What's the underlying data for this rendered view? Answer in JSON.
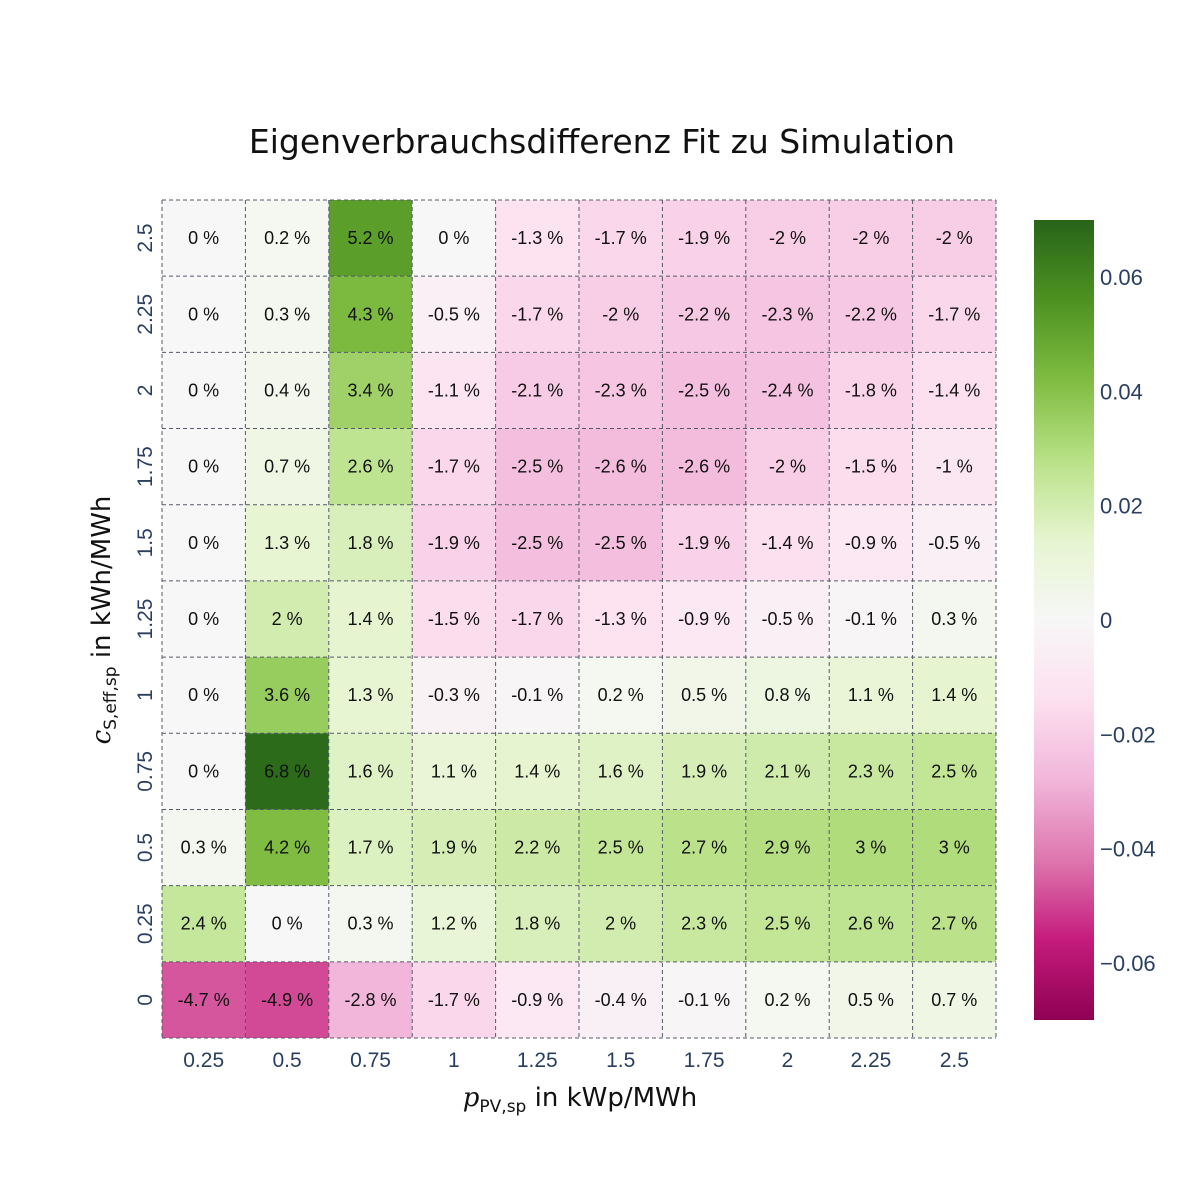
{
  "chart_data": {
    "type": "heatmap",
    "title": "Eigenverbrauchsdifferenz Fit zu Simulation",
    "xlabel": {
      "symbol": "p",
      "sub": "PV,sp",
      "unit": " in kWp/MWh"
    },
    "ylabel": {
      "symbol": "c",
      "sub": "S,eff,sp",
      "unit": " in kWh/MWh"
    },
    "x": [
      "0.25",
      "0.5",
      "0.75",
      "1",
      "1.25",
      "1.5",
      "1.75",
      "2",
      "2.25",
      "2.5"
    ],
    "y": [
      "0",
      "0.25",
      "0.5",
      "0.75",
      "1",
      "1.25",
      "1.5",
      "1.75",
      "2",
      "2.25",
      "2.5"
    ],
    "z": [
      [
        -0.047,
        -0.049,
        -0.028,
        -0.017,
        -0.009,
        -0.004,
        -0.001,
        0.002,
        0.005,
        0.007
      ],
      [
        0.024,
        0.0,
        0.003,
        0.012,
        0.018,
        0.02,
        0.023,
        0.025,
        0.026,
        0.027
      ],
      [
        0.003,
        0.042,
        0.017,
        0.019,
        0.022,
        0.025,
        0.027,
        0.029,
        0.03,
        0.03
      ],
      [
        0.0,
        0.068,
        0.016,
        0.011,
        0.014,
        0.016,
        0.019,
        0.021,
        0.023,
        0.025
      ],
      [
        0.0,
        0.036,
        0.013,
        -0.003,
        -0.001,
        0.002,
        0.005,
        0.008,
        0.011,
        0.014
      ],
      [
        0.0,
        0.02,
        0.014,
        -0.015,
        -0.017,
        -0.013,
        -0.009,
        -0.005,
        -0.001,
        0.003
      ],
      [
        0.0,
        0.013,
        0.018,
        -0.019,
        -0.025,
        -0.025,
        -0.019,
        -0.014,
        -0.009,
        -0.005
      ],
      [
        0.0,
        0.007,
        0.026,
        -0.017,
        -0.025,
        -0.026,
        -0.026,
        -0.02,
        -0.015,
        -0.01
      ],
      [
        0.0,
        0.004,
        0.034,
        -0.011,
        -0.021,
        -0.023,
        -0.025,
        -0.024,
        -0.018,
        -0.014
      ],
      [
        0.0,
        0.003,
        0.043,
        -0.005,
        -0.017,
        -0.02,
        -0.022,
        -0.023,
        -0.022,
        -0.017
      ],
      [
        0.0,
        0.002,
        0.052,
        0.0,
        -0.013,
        -0.017,
        -0.019,
        -0.02,
        -0.02,
        -0.02
      ]
    ],
    "text": [
      [
        "-4.7 %",
        "-4.9 %",
        "-2.8 %",
        "-1.7 %",
        "-0.9 %",
        "-0.4 %",
        "-0.1 %",
        "0.2 %",
        "0.5 %",
        "0.7 %"
      ],
      [
        "2.4 %",
        "0 %",
        "0.3 %",
        "1.2 %",
        "1.8 %",
        "2 %",
        "2.3 %",
        "2.5 %",
        "2.6 %",
        "2.7 %"
      ],
      [
        "0.3 %",
        "4.2 %",
        "1.7 %",
        "1.9 %",
        "2.2 %",
        "2.5 %",
        "2.7 %",
        "2.9 %",
        "3 %",
        "3 %"
      ],
      [
        "0 %",
        "6.8 %",
        "1.6 %",
        "1.1 %",
        "1.4 %",
        "1.6 %",
        "1.9 %",
        "2.1 %",
        "2.3 %",
        "2.5 %"
      ],
      [
        "0 %",
        "3.6 %",
        "1.3 %",
        "-0.3 %",
        "-0.1 %",
        "0.2 %",
        "0.5 %",
        "0.8 %",
        "1.1 %",
        "1.4 %"
      ],
      [
        "0 %",
        "2 %",
        "1.4 %",
        "-1.5 %",
        "-1.7 %",
        "-1.3 %",
        "-0.9 %",
        "-0.5 %",
        "-0.1 %",
        "0.3 %"
      ],
      [
        "0 %",
        "1.3 %",
        "1.8 %",
        "-1.9 %",
        "-2.5 %",
        "-2.5 %",
        "-1.9 %",
        "-1.4 %",
        "-0.9 %",
        "-0.5 %"
      ],
      [
        "0 %",
        "0.7 %",
        "2.6 %",
        "-1.7 %",
        "-2.5 %",
        "-2.6 %",
        "-2.6 %",
        "-2 %",
        "-1.5 %",
        "-1 %"
      ],
      [
        "0 %",
        "0.4 %",
        "3.4 %",
        "-1.1 %",
        "-2.1 %",
        "-2.3 %",
        "-2.5 %",
        "-2.4 %",
        "-1.8 %",
        "-1.4 %"
      ],
      [
        "0 %",
        "0.3 %",
        "4.3 %",
        "-0.5 %",
        "-1.7 %",
        "-2 %",
        "-2.2 %",
        "-2.3 %",
        "-2.2 %",
        "-1.7 %"
      ],
      [
        "0 %",
        "0.2 %",
        "5.2 %",
        "0 %",
        "-1.3 %",
        "-1.7 %",
        "-1.9 %",
        "-2 %",
        "-2 %",
        "-2 %"
      ]
    ],
    "colorscale": "PiYG",
    "zrange": [
      -0.07,
      0.07
    ],
    "colorbar_ticks": [
      "0.06",
      "0.04",
      "0.02",
      "0",
      "−0.02",
      "−0.04",
      "−0.06"
    ],
    "colorbar_tick_values": [
      0.06,
      0.04,
      0.02,
      0,
      -0.02,
      -0.04,
      -0.06
    ],
    "grid": true
  }
}
